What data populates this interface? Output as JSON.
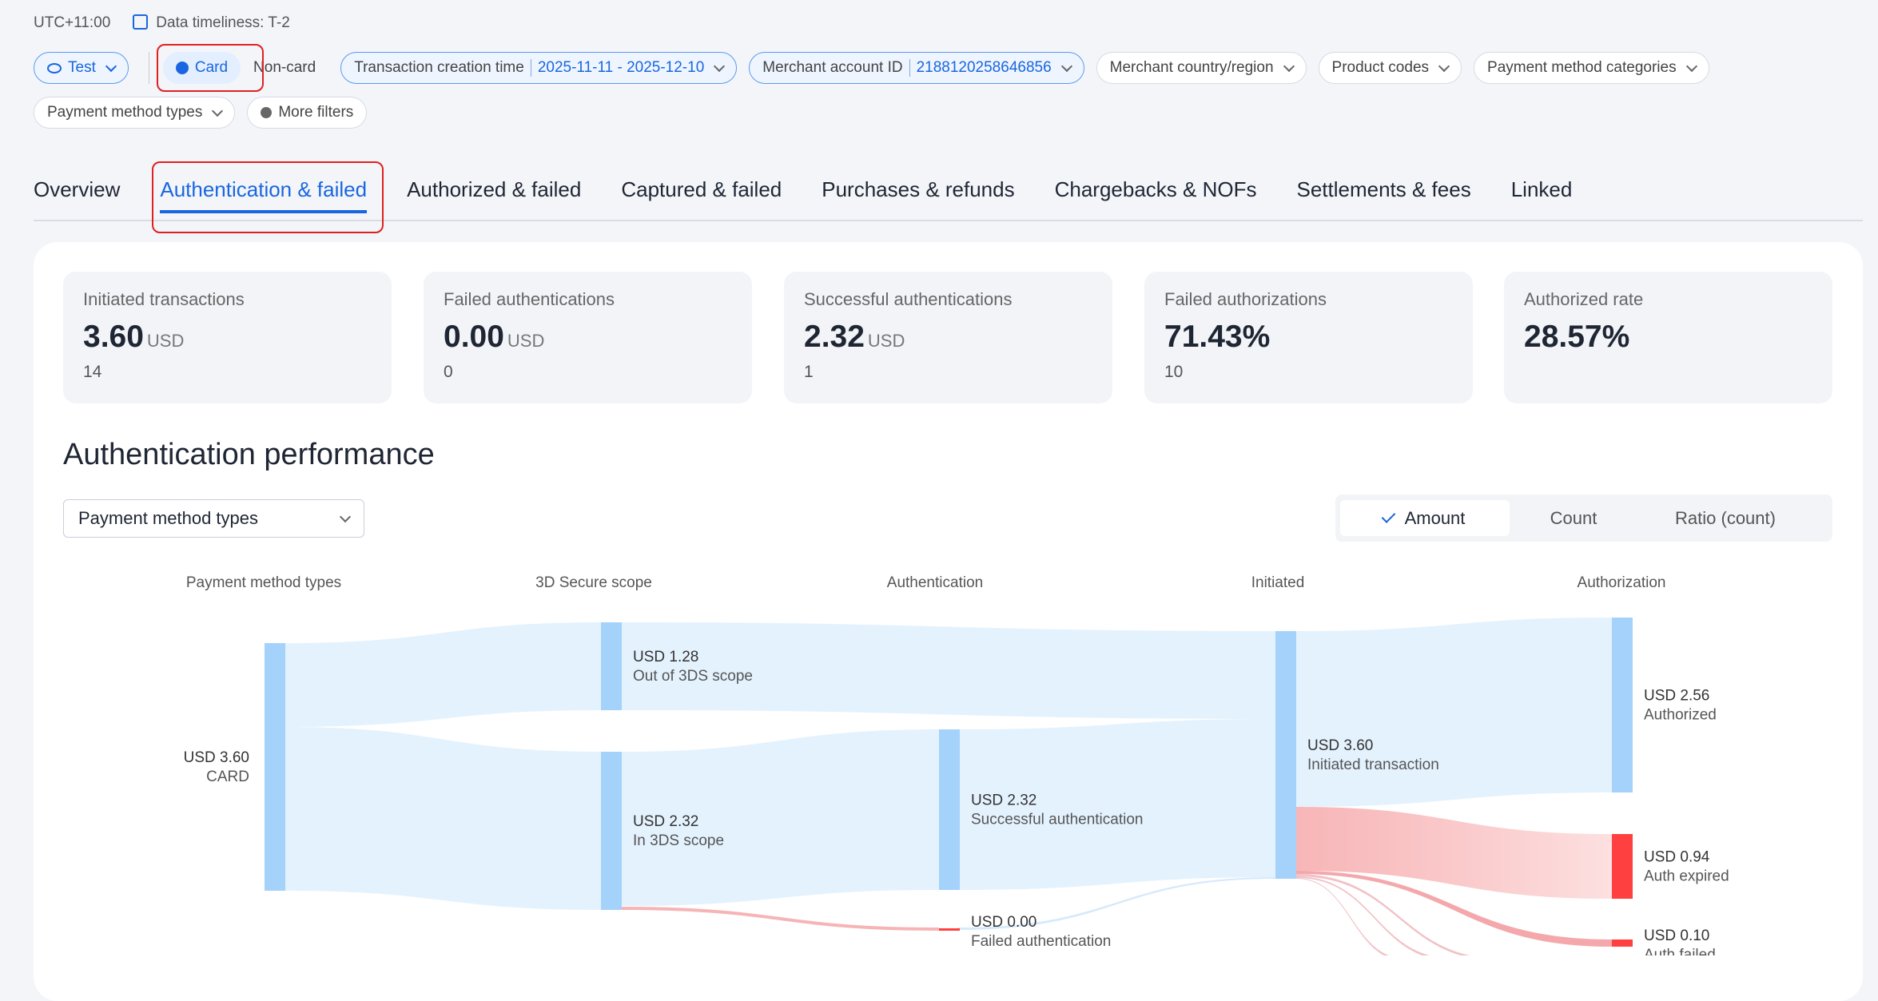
{
  "header": {
    "timezone": "UTC+11:00",
    "timeliness": "Data timeliness: T-2"
  },
  "filters": {
    "environment": "Test",
    "card": "Card",
    "non_card": "Non-card",
    "creation_time": {
      "label": "Transaction creation time",
      "value": "2025-11-11 - 2025-12-10"
    },
    "merchant_account": {
      "label": "Merchant account ID",
      "value": "2188120258646856"
    },
    "country": "Merchant country/region",
    "product": "Product codes",
    "pm_categories": "Payment method categories",
    "pm_types": "Payment method types",
    "more": "More filters"
  },
  "tabs": [
    "Overview",
    "Authentication & failed",
    "Authorized & failed",
    "Captured & failed",
    "Purchases & refunds",
    "Chargebacks & NOFs",
    "Settlements & fees",
    "Linked"
  ],
  "kpis": [
    {
      "label": "Initiated transactions",
      "value": "3.60",
      "unit": "USD",
      "count": "14"
    },
    {
      "label": "Failed authentications",
      "value": "0.00",
      "unit": "USD",
      "count": "0"
    },
    {
      "label": "Successful authentications",
      "value": "2.32",
      "unit": "USD",
      "count": "1"
    },
    {
      "label": "Failed authorizations",
      "value": "71.43%",
      "count": "10"
    },
    {
      "label": "Authorized rate",
      "value": "28.57%"
    }
  ],
  "section": {
    "title": "Authentication performance",
    "dropdown": "Payment method types",
    "toggle": [
      "Amount",
      "Count",
      "Ratio (count)"
    ]
  },
  "sankey": {
    "columns": [
      "Payment method types",
      "3D Secure scope",
      "Authentication",
      "Initiated",
      "Authorization"
    ],
    "nodes": [
      {
        "amount": "USD 3.60",
        "label": "CARD"
      },
      {
        "amount": "USD 1.28",
        "label": "Out of 3DS scope"
      },
      {
        "amount": "USD 2.32",
        "label": "In 3DS scope"
      },
      {
        "amount": "USD 2.32",
        "label": "Successful authentication"
      },
      {
        "amount": "USD 0.00",
        "label": "Failed authentication"
      },
      {
        "amount": "USD 3.60",
        "label": "Initiated transaction"
      },
      {
        "amount": "USD 2.56",
        "label": "Authorized"
      },
      {
        "amount": "USD 0.94",
        "label": "Auth expired"
      },
      {
        "amount": "USD 0.10",
        "label": "Auth failed"
      }
    ]
  }
}
